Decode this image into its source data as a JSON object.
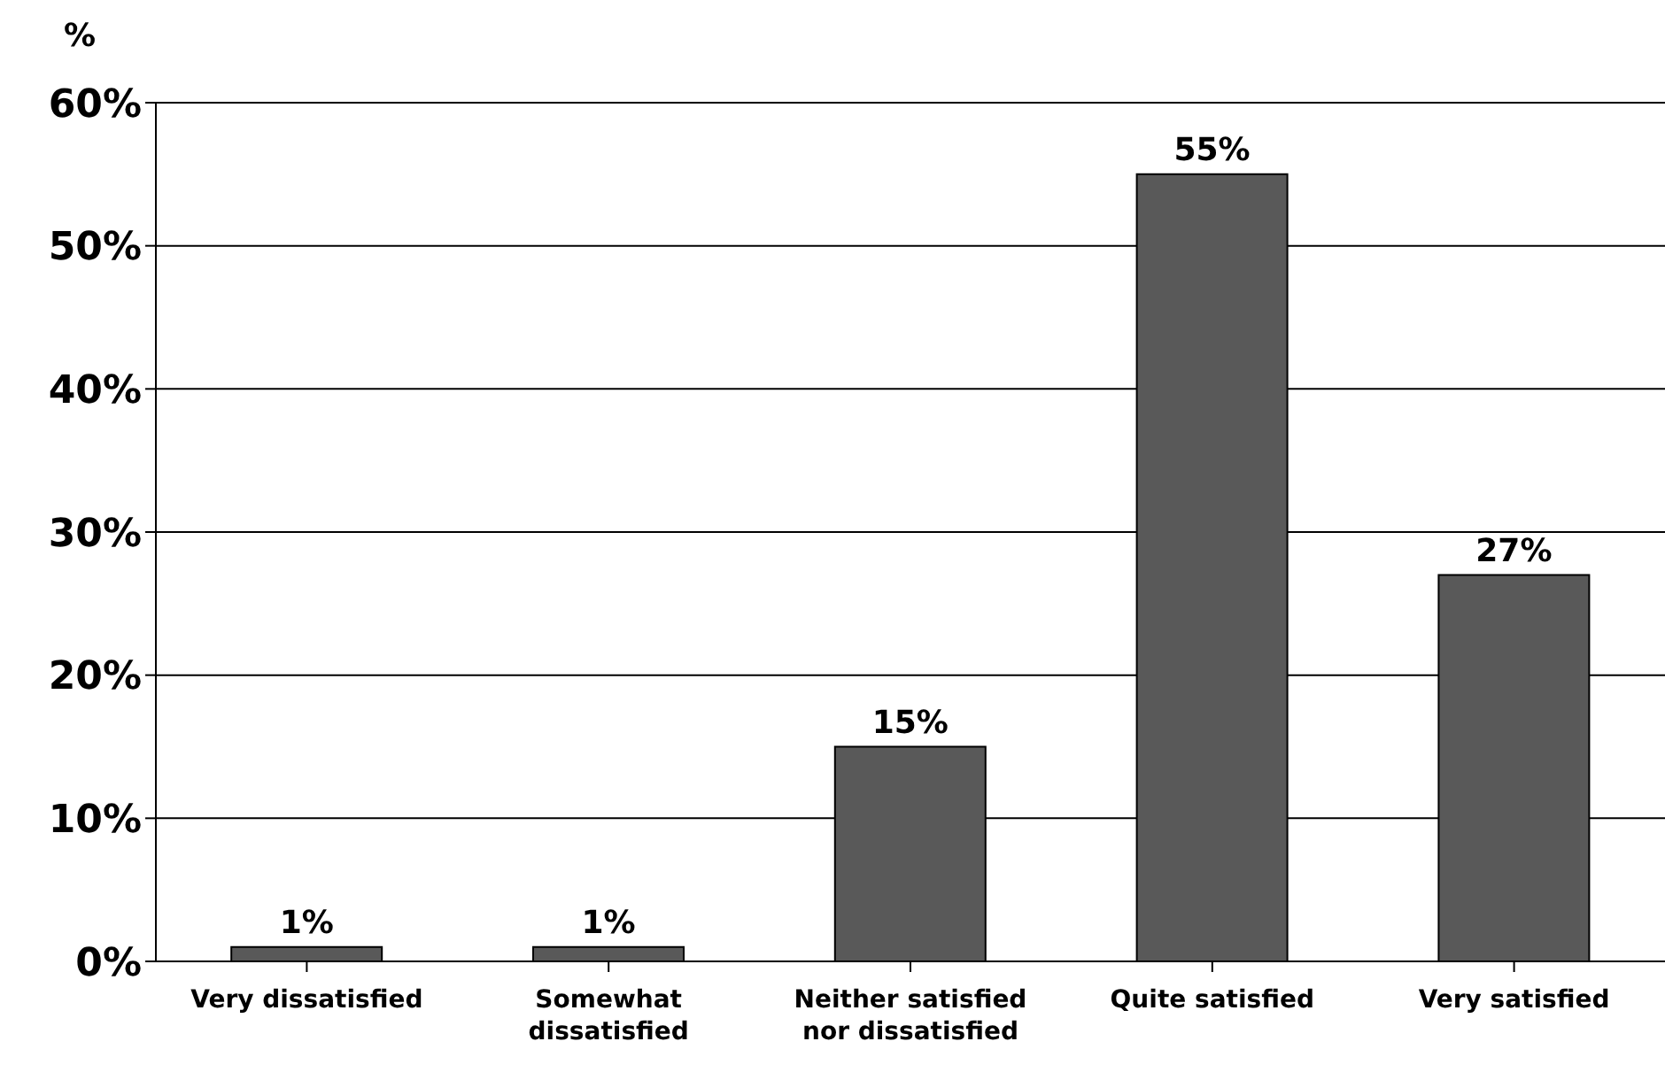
{
  "chart_data": {
    "type": "bar",
    "ylabel": "%",
    "categories": [
      "Very dissatisfied",
      "Somewhat dissatisfied",
      "Neither satisfied nor dissatisfied",
      "Quite satisfied",
      "Very satisfied"
    ],
    "values": [
      1,
      1,
      15,
      55,
      27
    ],
    "value_labels": [
      "1%",
      "1%",
      "15%",
      "55%",
      "27%"
    ],
    "color": "#595959",
    "ylim": [
      0,
      60
    ],
    "yticks": [
      {
        "value": 0,
        "label": "0%"
      },
      {
        "value": 10,
        "label": "10%"
      },
      {
        "value": 20,
        "label": "20%"
      },
      {
        "value": 30,
        "label": "30%"
      },
      {
        "value": 40,
        "label": "40%"
      },
      {
        "value": 50,
        "label": "50%"
      },
      {
        "value": 60,
        "label": "60%"
      }
    ],
    "grid": "y"
  }
}
